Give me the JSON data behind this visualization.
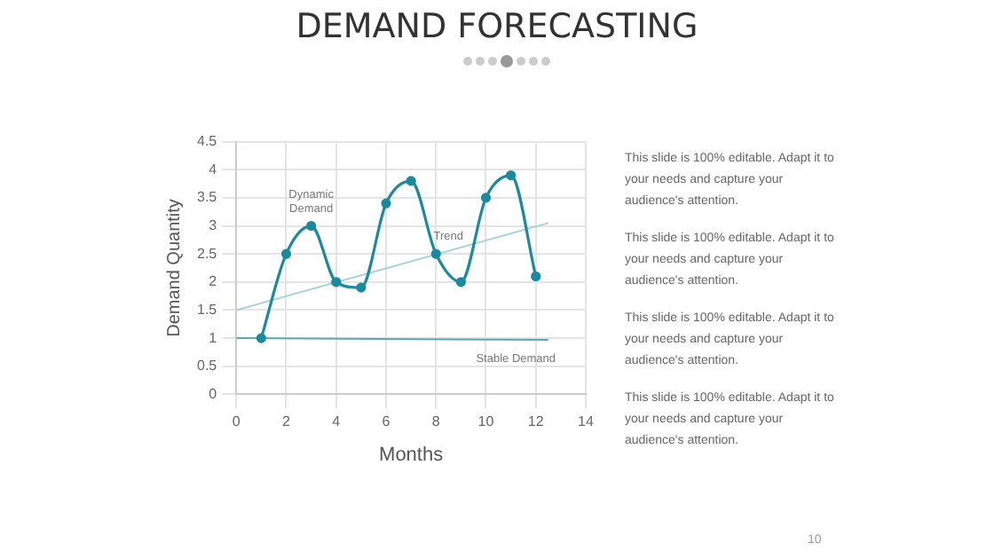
{
  "chart_data": {
    "type": "line",
    "title": "DEMAND FORECASTING",
    "xlabel": "Months",
    "ylabel": "Demand Quantity",
    "xlim": [
      0,
      14
    ],
    "xticks": [
      0,
      2,
      4,
      6,
      8,
      10,
      12,
      14
    ],
    "ylim": [
      0,
      4.5
    ],
    "yticks": [
      0,
      0.5,
      1,
      1.5,
      2,
      2.5,
      3,
      3.5,
      4,
      4.5
    ],
    "grid": true,
    "legend": false,
    "series": [
      {
        "name": "Dynamic Demand",
        "color": "#1b8a9e",
        "marker": "circle",
        "x": [
          1,
          2,
          3,
          4,
          5,
          6,
          7,
          8,
          9,
          10,
          11,
          12
        ],
        "values": [
          1,
          2.5,
          3,
          2,
          1.9,
          3.4,
          3.8,
          2.5,
          2,
          3.5,
          3.9,
          2.1
        ]
      },
      {
        "name": "Trend",
        "color": "#a8d4d6",
        "marker": "none",
        "x": [
          0,
          12.5
        ],
        "values": [
          1.5,
          3.05
        ]
      },
      {
        "name": "Stable Demand",
        "color": "#5aa9b3",
        "marker": "none",
        "x": [
          0,
          12.5
        ],
        "values": [
          1,
          0.97
        ]
      }
    ],
    "annotations": [
      "This slide is 100% editable. Adapt it to your needs and capture your audience's attention.",
      "This slide is 100% editable. Adapt it to your needs and capture your audience's attention.",
      "This slide is 100% editable. Adapt it to your needs and capture your audience's attention.",
      "This slide is 100% editable. Adapt it to your needs and capture your audience's attention.",
      "10"
    ]
  }
}
